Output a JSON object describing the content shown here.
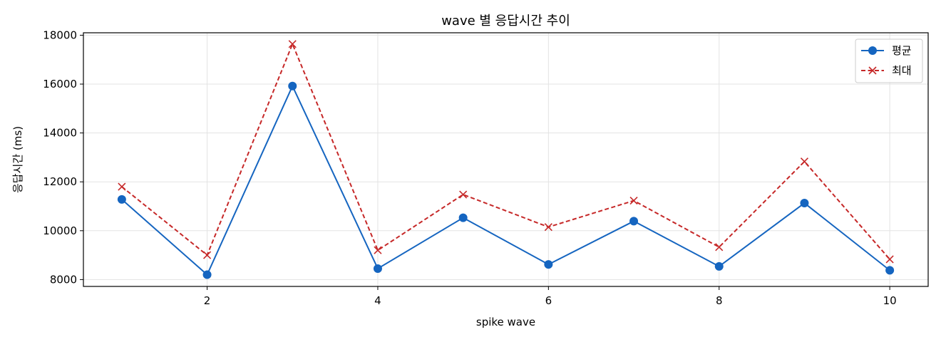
{
  "chart_data": {
    "type": "line",
    "title": "wave 별 응답시간 추이",
    "xlabel": "spike wave",
    "ylabel": "응답시간 (ms)",
    "x": [
      1,
      2,
      3,
      4,
      5,
      6,
      7,
      8,
      9,
      10
    ],
    "xticks": [
      2,
      4,
      6,
      8,
      10
    ],
    "yticks": [
      8000,
      10000,
      12000,
      14000,
      16000,
      18000
    ],
    "xlim": [
      0.55,
      10.45
    ],
    "ylim": [
      7720,
      18100
    ],
    "grid": true,
    "legend_position": "top-right",
    "series": [
      {
        "name": "평균",
        "color": "#1565c0",
        "marker": "circle",
        "line_style": "solid",
        "values": [
          11280,
          8200,
          15920,
          8450,
          10530,
          8620,
          10390,
          8540,
          11130,
          8380
        ]
      },
      {
        "name": "최대",
        "color": "#c62828",
        "marker": "x",
        "line_style": "dashed",
        "values": [
          11800,
          9000,
          17640,
          9200,
          11480,
          10150,
          11230,
          9330,
          12830,
          8830
        ]
      }
    ]
  }
}
